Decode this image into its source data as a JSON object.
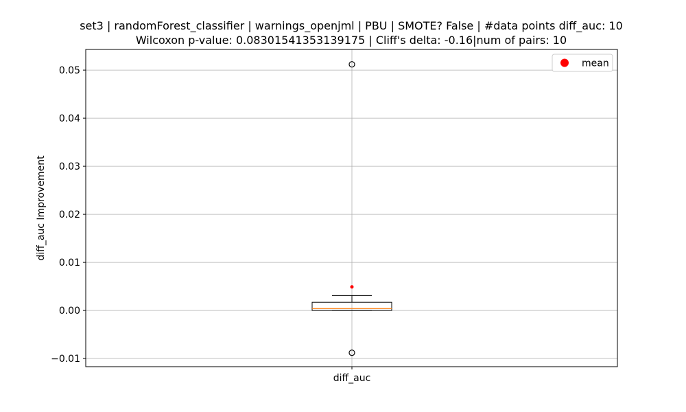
{
  "chart_data": {
    "type": "box",
    "title": "set3 | randomForest_classifier | warnings_openjml | PBU | SMOTE? False | #data points diff_auc: 10",
    "subtitle": "Wilcoxon p-value: 0.08301541353139175 | Cliff's delta: -0.16|num of pairs: 10",
    "xlabel": "",
    "ylabel": "diff_auc Improvement",
    "categories": [
      "diff_auc"
    ],
    "ylim": [
      -0.0117,
      0.0543
    ],
    "yticks": [
      -0.01,
      0.0,
      0.01,
      0.02,
      0.03,
      0.04,
      0.05
    ],
    "ytick_labels": [
      "−0.01",
      "0.00",
      "0.01",
      "0.02",
      "0.03",
      "0.04",
      "0.05"
    ],
    "grid": true,
    "legend": {
      "position": "top-right",
      "entries": [
        {
          "label": "mean",
          "color": "#ff0000"
        }
      ]
    },
    "box": {
      "whisker_low": 0.0,
      "q1": 0.0,
      "median": 0.0004,
      "q3": 0.0017,
      "whisker_high": 0.0031,
      "mean": 0.0049,
      "outliers": [
        0.0512,
        -0.0088
      ]
    },
    "colors": {
      "median": "#ff7f0e",
      "mean": "#ff0000",
      "grid": "#b0b0b0"
    }
  }
}
